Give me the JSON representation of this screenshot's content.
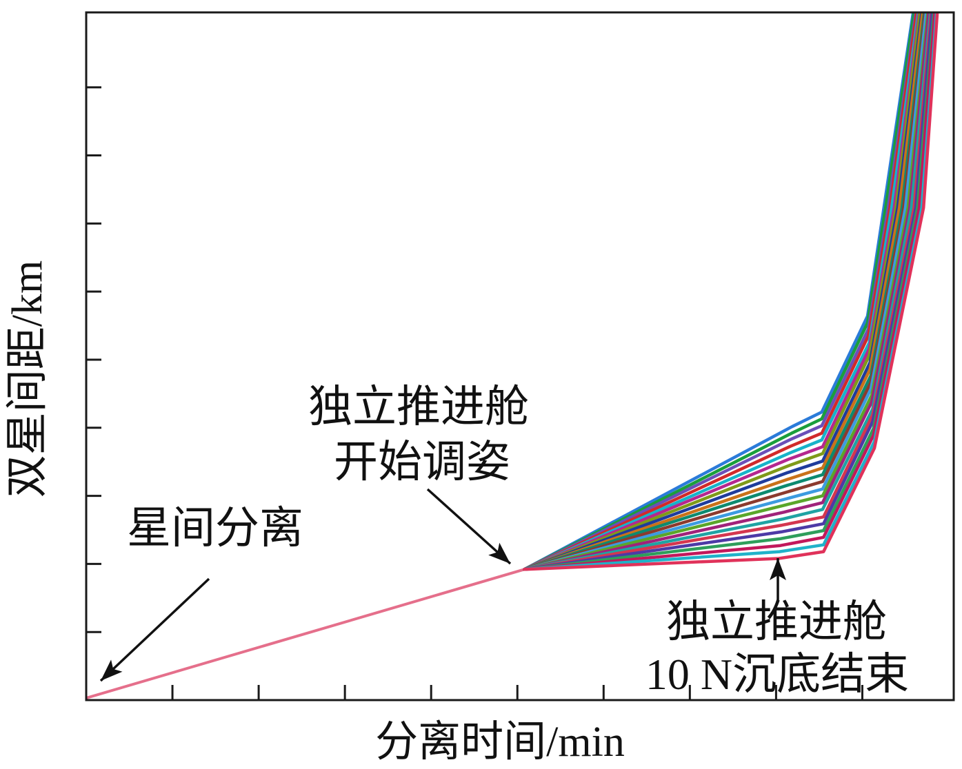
{
  "chart_data": {
    "type": "line",
    "xlabel": "分离时间/min",
    "ylabel": "双星间距/km",
    "xlim": [
      0,
      10.06
    ],
    "ylim": [
      0,
      10.1
    ],
    "xticks": [
      1,
      2,
      3,
      4,
      5,
      6,
      7,
      8,
      9
    ],
    "yticks": [
      1,
      2,
      3,
      4,
      5,
      6,
      7,
      8,
      9
    ],
    "grid": false,
    "legend": "none",
    "series": [
      {
        "color": "#e56f8b",
        "x": [
          0,
          5.08
        ],
        "y": [
          0.03,
          1.92
        ]
      },
      {
        "color": "#2b7bd9",
        "x": [
          5.08,
          8.19,
          8.53,
          9.06,
          9.25,
          9.59
        ],
        "y": [
          1.92,
          4.02,
          4.23,
          5.64,
          7.23,
          10.1
        ]
      },
      {
        "color": "#1a9e3c",
        "x": [
          5.08,
          8.18,
          8.53,
          9.06,
          9.27,
          9.6
        ],
        "y": [
          1.92,
          3.92,
          4.13,
          5.54,
          7.23,
          10.1
        ]
      },
      {
        "color": "#6b4fb8",
        "x": [
          5.08,
          8.17,
          8.53,
          9.07,
          9.3,
          9.62
        ],
        "y": [
          1.92,
          3.83,
          4.03,
          5.45,
          7.23,
          10.1
        ]
      },
      {
        "color": "#d12a2a",
        "x": [
          5.08,
          8.17,
          8.53,
          9.07,
          9.32,
          9.63
        ],
        "y": [
          1.92,
          3.73,
          3.92,
          5.35,
          7.23,
          10.1
        ]
      },
      {
        "color": "#17b3c9",
        "x": [
          5.08,
          8.16,
          8.53,
          9.08,
          9.34,
          9.65
        ],
        "y": [
          1.92,
          3.63,
          3.82,
          5.25,
          7.23,
          10.1
        ]
      },
      {
        "color": "#b5278f",
        "x": [
          5.08,
          8.15,
          8.54,
          9.08,
          9.37,
          9.66
        ],
        "y": [
          1.92,
          3.54,
          3.72,
          5.16,
          7.23,
          10.1
        ]
      },
      {
        "color": "#7f9a19",
        "x": [
          5.08,
          8.14,
          8.54,
          9.08,
          9.39,
          9.67
        ],
        "y": [
          1.92,
          3.44,
          3.62,
          5.06,
          7.23,
          10.1
        ]
      },
      {
        "color": "#1f3c9c",
        "x": [
          5.08,
          8.13,
          8.54,
          9.09,
          9.41,
          9.69
        ],
        "y": [
          1.92,
          3.34,
          3.51,
          4.96,
          7.23,
          10.1
        ]
      },
      {
        "color": "#c9721a",
        "x": [
          5.08,
          8.13,
          8.54,
          9.09,
          9.43,
          9.7
        ],
        "y": [
          1.92,
          3.24,
          3.41,
          4.86,
          7.23,
          10.1
        ]
      },
      {
        "color": "#0d8a6f",
        "x": [
          5.08,
          8.12,
          8.54,
          9.1,
          9.46,
          9.72
        ],
        "y": [
          1.92,
          3.15,
          3.31,
          4.77,
          7.23,
          10.1
        ]
      },
      {
        "color": "#8c3a2e",
        "x": [
          5.08,
          8.11,
          8.54,
          9.1,
          9.48,
          9.73
        ],
        "y": [
          1.92,
          3.05,
          3.21,
          4.67,
          7.23,
          10.1
        ]
      },
      {
        "color": "#3c9be0",
        "x": [
          5.08,
          8.1,
          8.54,
          9.1,
          9.5,
          9.74
        ],
        "y": [
          1.92,
          2.95,
          3.1,
          4.57,
          7.23,
          10.1
        ]
      },
      {
        "color": "#5aa62a",
        "x": [
          5.08,
          8.09,
          8.54,
          9.11,
          9.53,
          9.76
        ],
        "y": [
          1.92,
          2.86,
          3.0,
          4.48,
          7.23,
          10.1
        ]
      },
      {
        "color": "#a0227a",
        "x": [
          5.08,
          8.09,
          8.54,
          9.11,
          9.55,
          9.77
        ],
        "y": [
          1.92,
          2.76,
          2.9,
          4.38,
          7.23,
          10.1
        ]
      },
      {
        "color": "#1fa3a3",
        "x": [
          5.08,
          8.08,
          8.54,
          9.12,
          9.57,
          9.79
        ],
        "y": [
          1.92,
          2.66,
          2.8,
          4.28,
          7.23,
          10.1
        ]
      },
      {
        "color": "#d4364f",
        "x": [
          5.08,
          8.07,
          8.55,
          9.12,
          9.6,
          9.8
        ],
        "y": [
          1.92,
          2.57,
          2.69,
          4.19,
          7.23,
          10.1
        ]
      },
      {
        "color": "#4d3aa6",
        "x": [
          5.08,
          8.06,
          8.55,
          9.12,
          9.62,
          9.81
        ],
        "y": [
          1.92,
          2.47,
          2.59,
          4.09,
          7.23,
          10.1
        ]
      },
      {
        "color": "#2e9e5b",
        "x": [
          5.08,
          8.05,
          8.55,
          9.13,
          9.64,
          9.83
        ],
        "y": [
          1.92,
          2.37,
          2.49,
          3.99,
          7.23,
          10.1
        ]
      },
      {
        "color": "#c2185b",
        "x": [
          5.08,
          8.05,
          8.55,
          9.13,
          9.66,
          9.84
        ],
        "y": [
          1.92,
          2.27,
          2.39,
          3.89,
          7.23,
          10.1
        ]
      },
      {
        "color": "#20b2c9",
        "x": [
          5.08,
          8.04,
          8.55,
          9.14,
          9.69,
          9.86
        ],
        "y": [
          1.92,
          2.18,
          2.28,
          3.8,
          7.23,
          10.1
        ]
      },
      {
        "color": "#e0325a",
        "x": [
          5.08,
          8.03,
          8.55,
          9.14,
          9.71,
          9.87
        ],
        "y": [
          1.92,
          2.08,
          2.18,
          3.7,
          7.23,
          10.1
        ]
      }
    ],
    "annotations": [
      {
        "lines": [
          "星间分离"
        ]
      },
      {
        "lines": [
          "独立推进舱",
          "开始调姿"
        ]
      },
      {
        "lines": [
          "独立推进舱",
          "10 N沉底结束"
        ]
      }
    ]
  }
}
